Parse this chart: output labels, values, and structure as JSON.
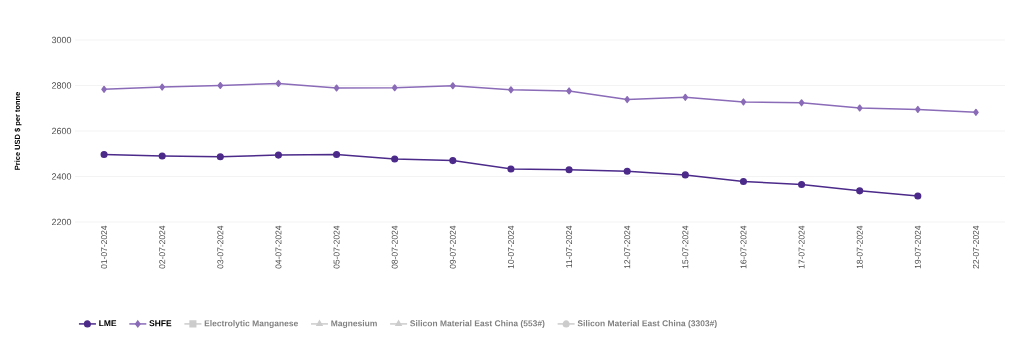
{
  "chart_data": {
    "type": "line",
    "ylabel": "Price USD $ per tonne",
    "categories": [
      "01-07-2024",
      "02-07-2024",
      "03-07-2024",
      "04-07-2024",
      "05-07-2024",
      "08-07-2024",
      "09-07-2024",
      "10-07-2024",
      "11-07-2024",
      "12-07-2024",
      "15-07-2024",
      "16-07-2024",
      "17-07-2024",
      "18-07-2024",
      "19-07-2024",
      "22-07-2024"
    ],
    "series": [
      {
        "name": "LME",
        "color": "#4b2a8a",
        "marker": "circle",
        "values": [
          2497,
          2490,
          2487,
          2494,
          2497,
          2477,
          2470,
          2433,
          2430,
          2423,
          2407,
          2378,
          2365,
          2337,
          2314,
          null
        ]
      },
      {
        "name": "SHFE",
        "color": "#8a6bb8",
        "marker": "diamond",
        "values": [
          2783,
          2793,
          2800,
          2809,
          2789,
          2790,
          2799,
          2781,
          2776,
          2738,
          2748,
          2728,
          2724,
          2701,
          2695,
          2682
        ]
      },
      {
        "name": "Electrolytic Manganese",
        "color": "#cccccc",
        "marker": "square",
        "values": [
          null,
          null,
          null,
          null,
          null,
          null,
          null,
          null,
          null,
          null,
          null,
          null,
          null,
          null,
          null,
          null
        ]
      },
      {
        "name": "Magnesium",
        "color": "#cccccc",
        "marker": "triangle",
        "values": [
          null,
          null,
          null,
          null,
          null,
          null,
          null,
          null,
          null,
          null,
          null,
          null,
          null,
          null,
          null,
          null
        ]
      },
      {
        "name": "Silicon Material East China (553#)",
        "color": "#cccccc",
        "marker": "triangle",
        "values": [
          null,
          null,
          null,
          null,
          null,
          null,
          null,
          null,
          null,
          null,
          null,
          null,
          null,
          null,
          null,
          null
        ]
      },
      {
        "name": "Silicon Material East China (3303#)",
        "color": "#cccccc",
        "marker": "circle",
        "values": [
          null,
          null,
          null,
          null,
          null,
          null,
          null,
          null,
          null,
          null,
          null,
          null,
          null,
          null,
          null,
          null
        ]
      }
    ],
    "ylim": [
      2200,
      3000
    ],
    "yticks": [
      2200,
      2400,
      2600,
      2800,
      3000
    ],
    "grid": "y",
    "legend": "bottom"
  }
}
